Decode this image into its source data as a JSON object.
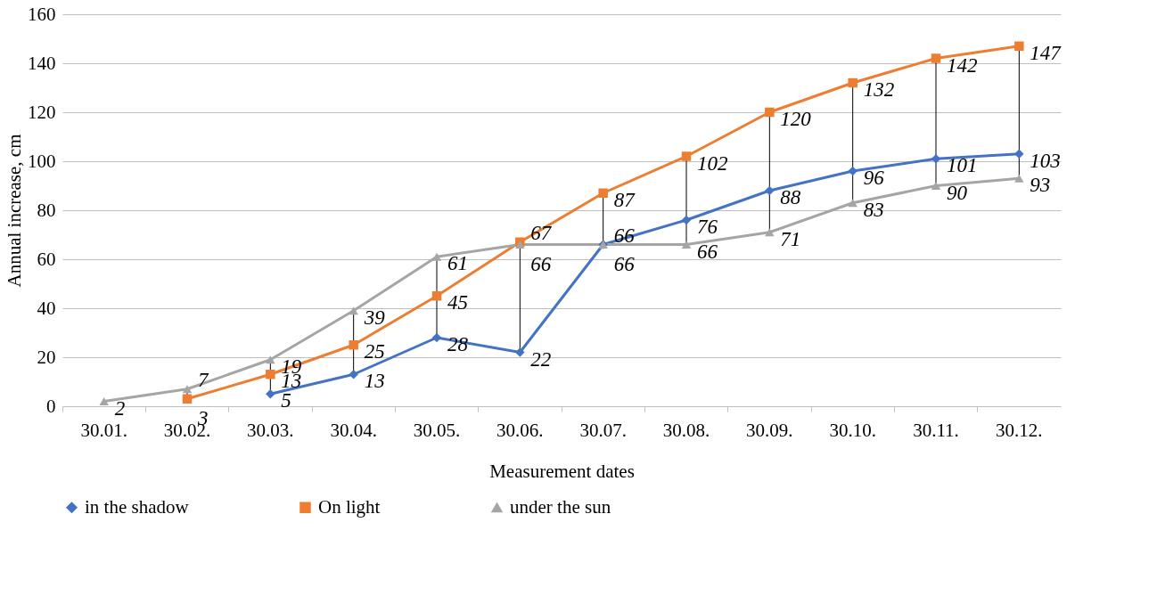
{
  "chart_data": {
    "type": "line",
    "xlabel": "Measurement dates",
    "ylabel": "Annual increase, cm",
    "categories": [
      "30.01.",
      "30.02.",
      "30.03.",
      "30.04.",
      "30.05.",
      "30.06.",
      "30.07.",
      "30.08.",
      "30.09.",
      "30.10.",
      "30.11.",
      "30.12."
    ],
    "series": [
      {
        "name": "in the shadow",
        "color": "#4472c4",
        "marker": "diamond",
        "values": [
          null,
          null,
          5,
          13,
          28,
          22,
          66,
          76,
          88,
          96,
          101,
          103
        ]
      },
      {
        "name": "On light",
        "color": "#ed7d31",
        "marker": "square",
        "values": [
          null,
          3,
          13,
          25,
          45,
          67,
          87,
          102,
          120,
          132,
          142,
          147
        ]
      },
      {
        "name": "under the sun",
        "color": "#a5a5a5",
        "marker": "triangle",
        "values": [
          2,
          7,
          19,
          39,
          61,
          66,
          66,
          66,
          71,
          83,
          90,
          93
        ]
      }
    ],
    "ylim": [
      0,
      160
    ],
    "yticks": [
      0,
      20,
      40,
      60,
      80,
      100,
      120,
      140,
      160
    ],
    "grid": "y",
    "legend": "bottom",
    "data_labels": true,
    "line_style": "solid"
  }
}
